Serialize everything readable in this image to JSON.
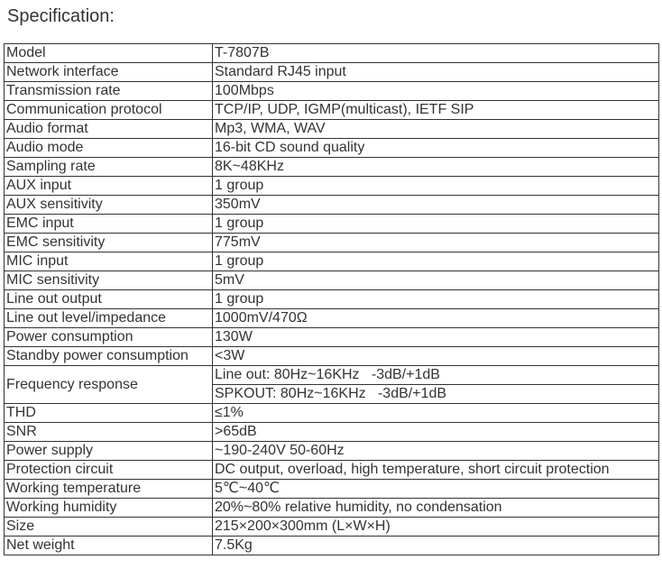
{
  "page": {
    "title": "Specification:"
  },
  "table": {
    "rows": [
      {
        "label": "Model",
        "values": [
          "T-7807B"
        ]
      },
      {
        "label": "Network interface",
        "values": [
          "Standard RJ45 input"
        ]
      },
      {
        "label": "Transmission rate",
        "values": [
          "100Mbps"
        ]
      },
      {
        "label": "Communication protocol",
        "values": [
          "TCP/IP, UDP, IGMP(multicast), IETF SIP"
        ]
      },
      {
        "label": "Audio format",
        "values": [
          "Mp3, WMA, WAV"
        ]
      },
      {
        "label": "Audio mode",
        "values": [
          "16-bit CD sound quality"
        ]
      },
      {
        "label": "Sampling rate",
        "values": [
          "8K~48KHz"
        ]
      },
      {
        "label": "AUX input",
        "values": [
          "1 group"
        ]
      },
      {
        "label": "AUX sensitivity",
        "values": [
          "350mV"
        ]
      },
      {
        "label": "EMC input",
        "values": [
          "1 group"
        ]
      },
      {
        "label": "EMC sensitivity",
        "values": [
          "775mV"
        ]
      },
      {
        "label": "MIC input",
        "values": [
          "1 group"
        ]
      },
      {
        "label": "MIC sensitivity",
        "values": [
          "5mV"
        ]
      },
      {
        "label": "Line out output",
        "values": [
          "1 group"
        ]
      },
      {
        "label": "Line out level/impedance",
        "values": [
          "1000mV/470Ω"
        ]
      },
      {
        "label": "Power consumption",
        "values": [
          "130W"
        ]
      },
      {
        "label": "Standby power consumption",
        "values": [
          "<3W"
        ]
      },
      {
        "label": "Frequency response",
        "values": [
          "Line out: 80Hz~16KHz   -3dB/+1dB",
          "SPKOUT: 80Hz~16KHz   -3dB/+1dB"
        ]
      },
      {
        "label": "THD",
        "values": [
          "≤1%"
        ]
      },
      {
        "label": "SNR",
        "values": [
          ">65dB"
        ]
      },
      {
        "label": "Power supply",
        "values": [
          "~190-240V 50-60Hz"
        ]
      },
      {
        "label": "Protection circuit",
        "values": [
          "DC output, overload, high temperature, short circuit protection"
        ]
      },
      {
        "label": "Working temperature",
        "values": [
          "5℃~40℃"
        ]
      },
      {
        "label": "Working humidity",
        "values": [
          "20%~80% relative humidity, no condensation"
        ]
      },
      {
        "label": "Size",
        "values": [
          "215×200×300mm (L×W×H)"
        ]
      },
      {
        "label": "Net weight",
        "values": [
          "7.5Kg"
        ]
      }
    ]
  },
  "colors": {
    "text": "#333333",
    "border": "#333333",
    "background": "#ffffff"
  }
}
